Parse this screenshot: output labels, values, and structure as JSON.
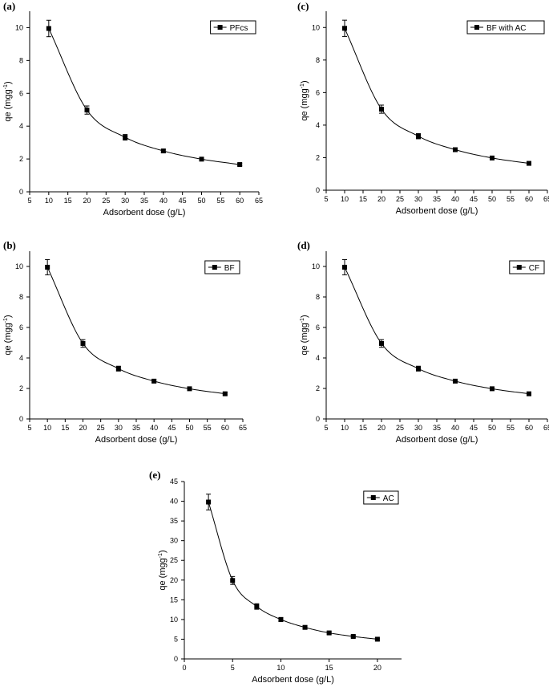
{
  "chart_data": [
    {
      "type": "line",
      "panel_label": "(a)",
      "xlabel": "Adsorbent dose (g/L)",
      "ylabel": "qe (mgg",
      "ylabel_sup": "-1",
      "ylabel_end": ")",
      "xlim": [
        5,
        65
      ],
      "ylim": [
        0,
        11
      ],
      "xticks": [
        "5",
        "10",
        "15",
        "20",
        "25",
        "30",
        "35",
        "40",
        "45",
        "50",
        "55",
        "60",
        "65"
      ],
      "yticks": [
        "0",
        "2",
        "4",
        "6",
        "8",
        "10"
      ],
      "legend_position": "top-right",
      "series": [
        {
          "name": "PFcs",
          "x": [
            10,
            20,
            30,
            40,
            50,
            60
          ],
          "y": [
            9.95,
            4.98,
            3.32,
            2.49,
            1.99,
            1.66
          ],
          "err": [
            0.5,
            0.25,
            0.17,
            0.1,
            0.08,
            0.07
          ]
        }
      ]
    },
    {
      "type": "line",
      "panel_label": "(b)",
      "xlabel": "Adsorbent dose (g/L)",
      "ylabel": "qe (mgg",
      "ylabel_sup": "-1",
      "ylabel_end": ")",
      "xlim": [
        5,
        65
      ],
      "ylim": [
        0,
        11
      ],
      "xticks": [
        "5",
        "10",
        "15",
        "20",
        "25",
        "30",
        "35",
        "40",
        "45",
        "50",
        "55",
        "60",
        "65"
      ],
      "yticks": [
        "0",
        "2",
        "4",
        "6",
        "8",
        "10"
      ],
      "legend_position": "top-right",
      "series": [
        {
          "name": "BF",
          "x": [
            10,
            20,
            30,
            40,
            50,
            60
          ],
          "y": [
            9.95,
            4.95,
            3.3,
            2.48,
            1.98,
            1.65
          ],
          "err": [
            0.5,
            0.25,
            0.16,
            0.1,
            0.08,
            0.07
          ]
        }
      ]
    },
    {
      "type": "line",
      "panel_label": "(c)",
      "xlabel": "Adsorbent dose (g/L)",
      "ylabel": "qe (mgg",
      "ylabel_sup": "-1",
      "ylabel_end": ")",
      "xlim": [
        5,
        65
      ],
      "ylim": [
        0,
        11
      ],
      "xticks": [
        "5",
        "10",
        "15",
        "20",
        "25",
        "30",
        "35",
        "40",
        "45",
        "50",
        "55",
        "60",
        "65"
      ],
      "yticks": [
        "0",
        "2",
        "4",
        "6",
        "8",
        "10"
      ],
      "legend_position": "top-right",
      "series": [
        {
          "name": "BF with AC",
          "x": [
            10,
            20,
            30,
            40,
            50,
            60
          ],
          "y": [
            9.95,
            4.98,
            3.32,
            2.49,
            1.98,
            1.65
          ],
          "err": [
            0.5,
            0.25,
            0.16,
            0.1,
            0.08,
            0.07
          ]
        }
      ]
    },
    {
      "type": "line",
      "panel_label": "(d)",
      "xlabel": "Adsorbent dose (g/L)",
      "ylabel": "qe (mgg",
      "ylabel_sup": "-1",
      "ylabel_end": ")",
      "xlim": [
        5,
        65
      ],
      "ylim": [
        0,
        11
      ],
      "xticks": [
        "5",
        "10",
        "15",
        "20",
        "25",
        "30",
        "35",
        "40",
        "45",
        "50",
        "55",
        "60",
        "65"
      ],
      "yticks": [
        "0",
        "2",
        "4",
        "6",
        "8",
        "10"
      ],
      "legend_position": "top-right",
      "series": [
        {
          "name": "CF",
          "x": [
            10,
            20,
            30,
            40,
            50,
            60
          ],
          "y": [
            9.95,
            4.95,
            3.3,
            2.48,
            1.98,
            1.65
          ],
          "err": [
            0.5,
            0.25,
            0.16,
            0.1,
            0.08,
            0.07
          ]
        }
      ]
    },
    {
      "type": "line",
      "panel_label": "(e)",
      "xlabel": "Adsorbent dose (g/L)",
      "ylabel": "qe (mgg",
      "ylabel_sup": "-1",
      "ylabel_end": ")",
      "xlim": [
        0,
        22.5
      ],
      "ylim": [
        0,
        45
      ],
      "xticks": [
        "0",
        "5",
        "10",
        "15",
        "20"
      ],
      "xtick_values": [
        0,
        5,
        10,
        15,
        20
      ],
      "yticks": [
        "0",
        "5",
        "10",
        "15",
        "20",
        "25",
        "30",
        "35",
        "40",
        "45"
      ],
      "legend_position": "top-right",
      "series": [
        {
          "name": "AC",
          "x": [
            2.5,
            5,
            7.5,
            10,
            12.5,
            15,
            17.5,
            20
          ],
          "y": [
            39.8,
            19.9,
            13.3,
            10,
            8,
            6.6,
            5.7,
            5
          ],
          "err": [
            2,
            1,
            0.7,
            0.5,
            0.4,
            0.3,
            0.3,
            0.25
          ]
        }
      ]
    }
  ]
}
